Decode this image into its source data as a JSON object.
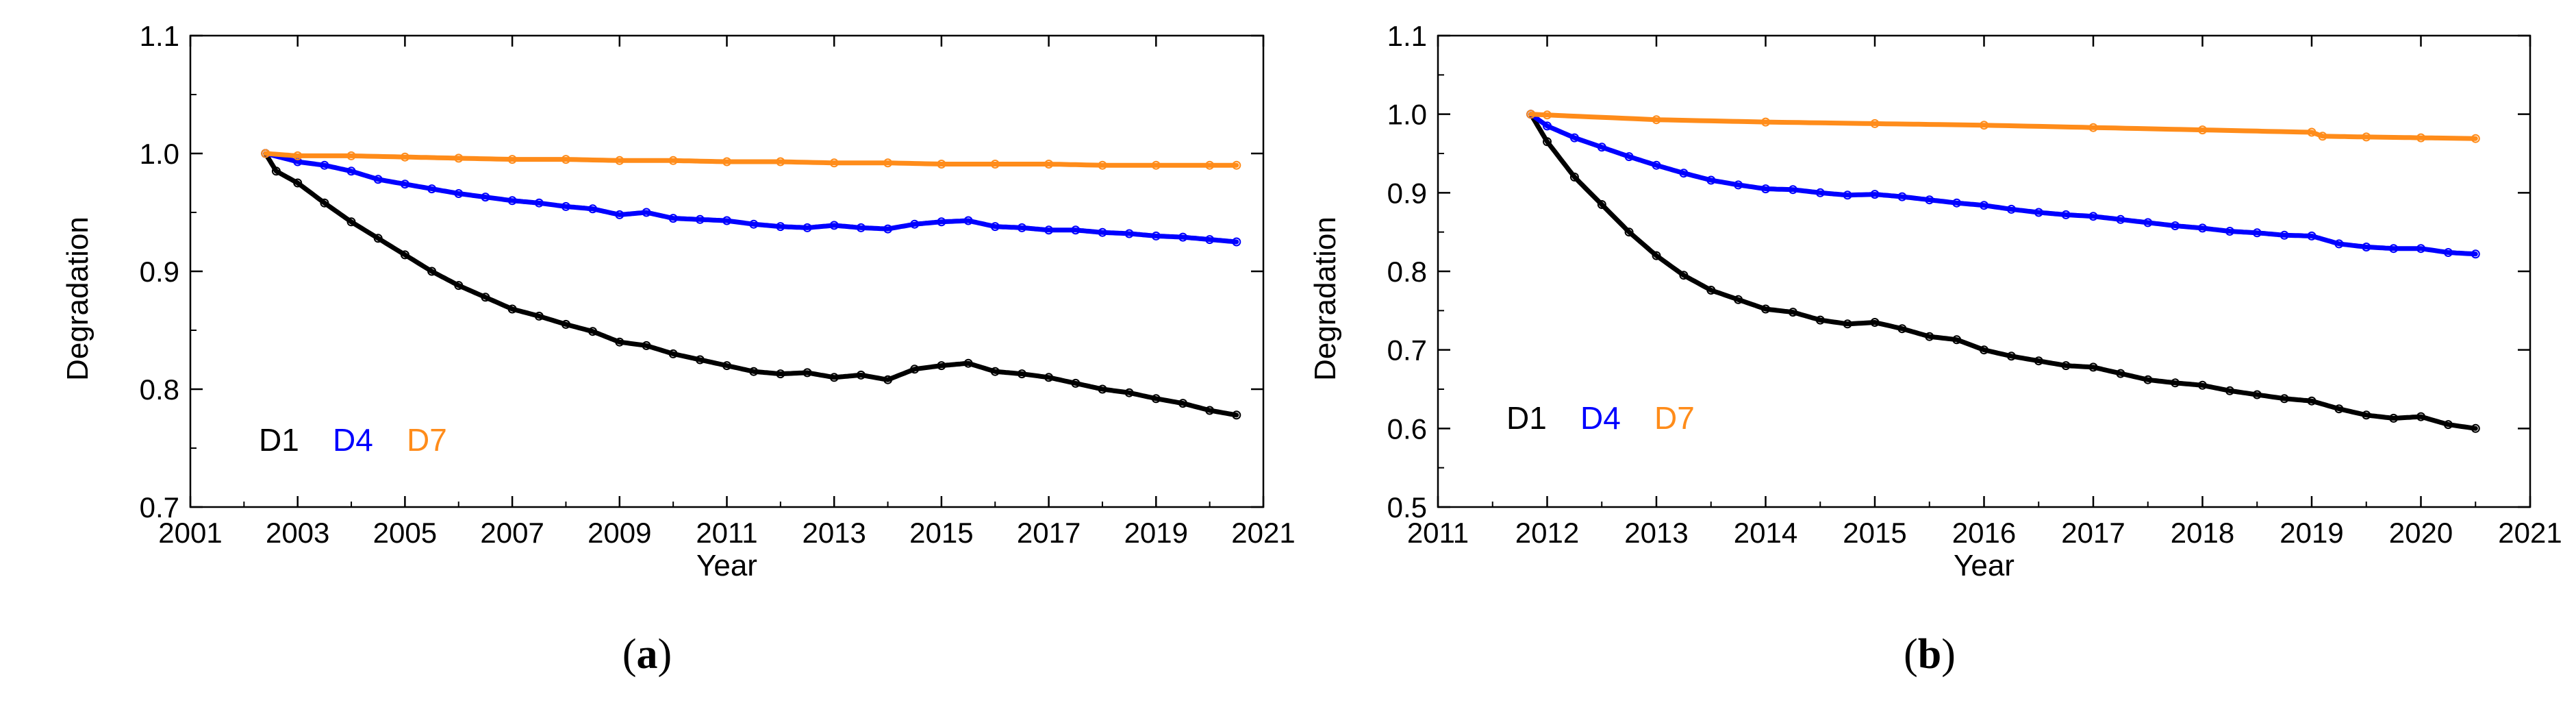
{
  "chart_data": [
    {
      "type": "line",
      "panel_label": "a",
      "xlabel": "Year",
      "ylabel": "Degradation",
      "xlim": [
        2001,
        2021
      ],
      "ylim": [
        0.7,
        1.1
      ],
      "xticks": [
        2001,
        2003,
        2005,
        2007,
        2009,
        2011,
        2013,
        2015,
        2017,
        2019,
        2021
      ],
      "xtick_labels": [
        "2001",
        "2003",
        "2005",
        "2007",
        "2009",
        "2011",
        "2013",
        "2015",
        "2017",
        "2019",
        "2021"
      ],
      "yticks": [
        0.7,
        0.8,
        0.9,
        1.0,
        1.1
      ],
      "ytick_labels": [
        "0.7",
        "0.8",
        "0.9",
        "1.0",
        "1.1"
      ],
      "legend": {
        "placement": "bottom-left",
        "entries": [
          "D1",
          "D4",
          "D7"
        ]
      },
      "series": [
        {
          "name": "D1",
          "color": "#000000",
          "x": [
            2002.4,
            2002.6,
            2003.0,
            2003.5,
            2004.0,
            2004.5,
            2005.0,
            2005.5,
            2006.0,
            2006.5,
            2007.0,
            2007.5,
            2008.0,
            2008.5,
            2009.0,
            2009.5,
            2010.0,
            2010.5,
            2011.0,
            2011.5,
            2012.0,
            2012.5,
            2013.0,
            2013.5,
            2014.0,
            2014.5,
            2015.0,
            2015.5,
            2016.0,
            2016.5,
            2017.0,
            2017.5,
            2018.0,
            2018.5,
            2019.0,
            2019.5,
            2020.0,
            2020.5
          ],
          "values": [
            1.0,
            0.985,
            0.975,
            0.958,
            0.942,
            0.928,
            0.914,
            0.9,
            0.888,
            0.878,
            0.868,
            0.862,
            0.855,
            0.849,
            0.84,
            0.837,
            0.83,
            0.825,
            0.82,
            0.815,
            0.813,
            0.814,
            0.81,
            0.812,
            0.808,
            0.817,
            0.82,
            0.822,
            0.815,
            0.813,
            0.81,
            0.805,
            0.8,
            0.797,
            0.792,
            0.788,
            0.782,
            0.778
          ]
        },
        {
          "name": "D4",
          "color": "#0000ff",
          "x": [
            2002.4,
            2003.0,
            2003.5,
            2004.0,
            2004.5,
            2005.0,
            2005.5,
            2006.0,
            2006.5,
            2007.0,
            2007.5,
            2008.0,
            2008.5,
            2009.0,
            2009.5,
            2010.0,
            2010.5,
            2011.0,
            2011.5,
            2012.0,
            2012.5,
            2013.0,
            2013.5,
            2014.0,
            2014.5,
            2015.0,
            2015.5,
            2016.0,
            2016.5,
            2017.0,
            2017.5,
            2018.0,
            2018.5,
            2019.0,
            2019.5,
            2020.0,
            2020.5
          ],
          "values": [
            1.0,
            0.993,
            0.99,
            0.985,
            0.978,
            0.974,
            0.97,
            0.966,
            0.963,
            0.96,
            0.958,
            0.955,
            0.953,
            0.948,
            0.95,
            0.945,
            0.944,
            0.943,
            0.94,
            0.938,
            0.937,
            0.939,
            0.937,
            0.936,
            0.94,
            0.942,
            0.943,
            0.938,
            0.937,
            0.935,
            0.935,
            0.933,
            0.932,
            0.93,
            0.929,
            0.927,
            0.925
          ]
        },
        {
          "name": "D7",
          "color": "#ff8c1a",
          "x": [
            2002.4,
            2003.0,
            2004.0,
            2005.0,
            2006.0,
            2007.0,
            2008.0,
            2009.0,
            2010.0,
            2011.0,
            2012.0,
            2013.0,
            2014.0,
            2015.0,
            2016.0,
            2017.0,
            2018.0,
            2019.0,
            2020.0,
            2020.5
          ],
          "values": [
            1.0,
            0.998,
            0.998,
            0.997,
            0.996,
            0.995,
            0.995,
            0.994,
            0.994,
            0.993,
            0.993,
            0.992,
            0.992,
            0.991,
            0.991,
            0.991,
            0.99,
            0.99,
            0.99,
            0.99
          ]
        }
      ]
    },
    {
      "type": "line",
      "panel_label": "b",
      "xlabel": "Year",
      "ylabel": "Degradation",
      "xlim": [
        2011,
        2021
      ],
      "ylim": [
        0.5,
        1.1
      ],
      "xticks": [
        2011,
        2012,
        2013,
        2014,
        2015,
        2016,
        2017,
        2018,
        2019,
        2020,
        2021
      ],
      "xtick_labels": [
        "2011",
        "2012",
        "2013",
        "2014",
        "2015",
        "2016",
        "2017",
        "2018",
        "2019",
        "2020",
        "2021"
      ],
      "yticks": [
        0.5,
        0.6,
        0.7,
        0.8,
        0.9,
        1.0,
        1.1
      ],
      "ytick_labels": [
        "0.5",
        "0.6",
        "0.7",
        "0.8",
        "0.9",
        "1.0",
        "1.1"
      ],
      "legend": {
        "placement": "bottom-left",
        "entries": [
          "D1",
          "D4",
          "D7"
        ]
      },
      "series": [
        {
          "name": "D1",
          "color": "#000000",
          "x": [
            2011.85,
            2012.0,
            2012.25,
            2012.5,
            2012.75,
            2013.0,
            2013.25,
            2013.5,
            2013.75,
            2014.0,
            2014.25,
            2014.5,
            2014.75,
            2015.0,
            2015.25,
            2015.5,
            2015.75,
            2016.0,
            2016.25,
            2016.5,
            2016.75,
            2017.0,
            2017.25,
            2017.5,
            2017.75,
            2018.0,
            2018.25,
            2018.5,
            2018.75,
            2019.0,
            2019.25,
            2019.5,
            2019.75,
            2020.0,
            2020.25,
            2020.5
          ],
          "values": [
            1.0,
            0.965,
            0.92,
            0.885,
            0.85,
            0.82,
            0.795,
            0.776,
            0.764,
            0.752,
            0.748,
            0.738,
            0.733,
            0.735,
            0.727,
            0.717,
            0.713,
            0.7,
            0.692,
            0.686,
            0.68,
            0.678,
            0.67,
            0.662,
            0.658,
            0.655,
            0.648,
            0.643,
            0.638,
            0.635,
            0.625,
            0.617,
            0.613,
            0.615,
            0.605,
            0.6
          ]
        },
        {
          "name": "D4",
          "color": "#0000ff",
          "x": [
            2011.85,
            2012.0,
            2012.25,
            2012.5,
            2012.75,
            2013.0,
            2013.25,
            2013.5,
            2013.75,
            2014.0,
            2014.25,
            2014.5,
            2014.75,
            2015.0,
            2015.25,
            2015.5,
            2015.75,
            2016.0,
            2016.25,
            2016.5,
            2016.75,
            2017.0,
            2017.25,
            2017.5,
            2017.75,
            2018.0,
            2018.25,
            2018.5,
            2018.75,
            2019.0,
            2019.25,
            2019.5,
            2019.75,
            2020.0,
            2020.25,
            2020.5
          ],
          "values": [
            1.0,
            0.985,
            0.97,
            0.958,
            0.946,
            0.935,
            0.925,
            0.916,
            0.91,
            0.905,
            0.904,
            0.9,
            0.897,
            0.898,
            0.895,
            0.891,
            0.887,
            0.884,
            0.879,
            0.875,
            0.872,
            0.87,
            0.866,
            0.862,
            0.858,
            0.855,
            0.851,
            0.849,
            0.846,
            0.845,
            0.835,
            0.831,
            0.829,
            0.829,
            0.824,
            0.822
          ]
        },
        {
          "name": "D7",
          "color": "#ff8c1a",
          "x": [
            2011.85,
            2012.0,
            2013.0,
            2014.0,
            2015.0,
            2016.0,
            2017.0,
            2018.0,
            2019.0,
            2019.1,
            2019.5,
            2020.0,
            2020.5
          ],
          "values": [
            1.0,
            0.999,
            0.993,
            0.99,
            0.988,
            0.986,
            0.983,
            0.98,
            0.977,
            0.972,
            0.971,
            0.97,
            0.969
          ]
        }
      ]
    }
  ]
}
